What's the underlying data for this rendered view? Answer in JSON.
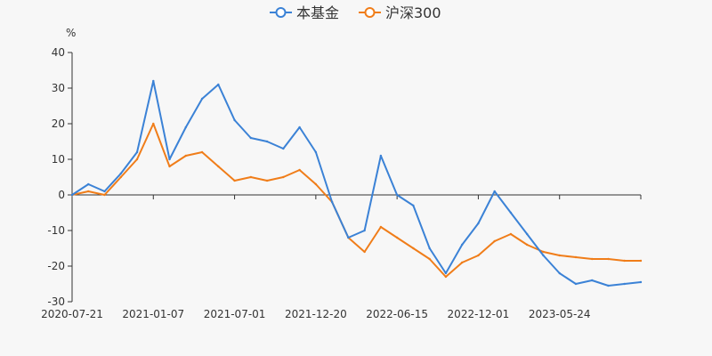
{
  "chart_data": {
    "type": "line",
    "title": "",
    "xlabel": "",
    "ylabel": "%",
    "ylim": [
      -30,
      40
    ],
    "yticks": [
      40,
      30,
      20,
      10,
      0,
      -10,
      -20,
      -30
    ],
    "grid": false,
    "legend_position": "top-center",
    "x_tick_labels": [
      "2020-07-21",
      "2021-01-07",
      "2021-07-01",
      "2021-12-20",
      "2022-06-15",
      "2022-12-01",
      "2023-05-24"
    ],
    "x_index_range": [
      0,
      35
    ],
    "series": [
      {
        "name": "本基金",
        "color": "#3b82d6",
        "x": [
          0,
          1,
          2,
          3,
          4,
          5,
          6,
          7,
          8,
          9,
          10,
          11,
          12,
          13,
          14,
          15,
          16,
          17,
          18,
          19,
          20,
          21,
          22,
          23,
          24,
          25,
          26,
          27,
          28,
          29,
          30,
          31,
          32,
          33,
          34,
          35
        ],
        "values": [
          0,
          3,
          1,
          6,
          12,
          32,
          10,
          19,
          27,
          31,
          21,
          16,
          15,
          13,
          19,
          12,
          -2,
          -12,
          -10,
          11,
          0,
          -3,
          -15,
          -22,
          -14,
          -8,
          1,
          -5,
          -11,
          -17,
          -22,
          -25,
          -24,
          -25.5,
          -25,
          -24.5
        ]
      },
      {
        "name": "沪深300",
        "color": "#f07d19",
        "x": [
          0,
          1,
          2,
          3,
          4,
          5,
          6,
          7,
          8,
          9,
          10,
          11,
          12,
          13,
          14,
          15,
          16,
          17,
          18,
          19,
          20,
          21,
          22,
          23,
          24,
          25,
          26,
          27,
          28,
          29,
          30,
          31,
          32,
          33,
          34,
          35
        ],
        "values": [
          0,
          1,
          0,
          5,
          10,
          20,
          8,
          11,
          12,
          8,
          4,
          5,
          4,
          5,
          7,
          3,
          -2,
          -12,
          -16,
          -9,
          -12,
          -15,
          -18,
          -23,
          -19,
          -17,
          -13,
          -11,
          -14,
          -16,
          -17,
          -17.5,
          -18,
          -18,
          -18.5,
          -18.5
        ]
      }
    ]
  }
}
